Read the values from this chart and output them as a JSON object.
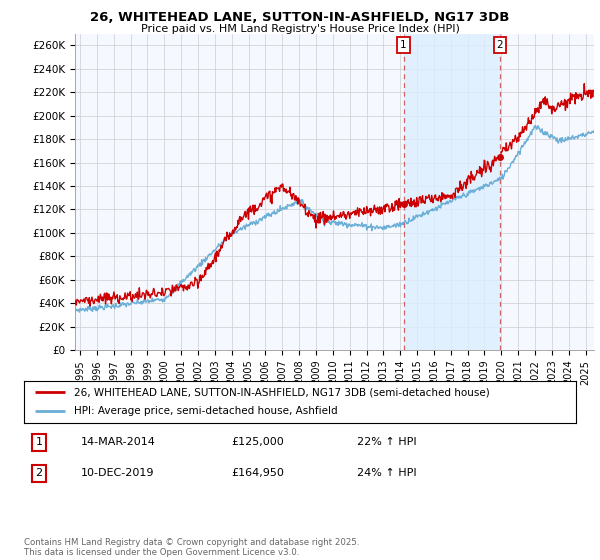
{
  "title": "26, WHITEHEAD LANE, SUTTON-IN-ASHFIELD, NG17 3DB",
  "subtitle": "Price paid vs. HM Land Registry's House Price Index (HPI)",
  "ylim": [
    0,
    270000
  ],
  "yticks": [
    0,
    20000,
    40000,
    60000,
    80000,
    100000,
    120000,
    140000,
    160000,
    180000,
    200000,
    220000,
    240000,
    260000
  ],
  "xlim_start": 1994.7,
  "xlim_end": 2025.5,
  "xticks": [
    1995,
    1996,
    1997,
    1998,
    1999,
    2000,
    2001,
    2002,
    2003,
    2004,
    2005,
    2006,
    2007,
    2008,
    2009,
    2010,
    2011,
    2012,
    2013,
    2014,
    2015,
    2016,
    2017,
    2018,
    2019,
    2020,
    2021,
    2022,
    2023,
    2024,
    2025
  ],
  "red_color": "#cc0000",
  "blue_color": "#6baed6",
  "vline_color": "#cc6666",
  "span_color": "#ddeeff",
  "marker1_x": 2014.2,
  "marker1_y": 125000,
  "marker2_x": 2019.92,
  "marker2_y": 164950,
  "legend_label1": "26, WHITEHEAD LANE, SUTTON-IN-ASHFIELD, NG17 3DB (semi-detached house)",
  "legend_label2": "HPI: Average price, semi-detached house, Ashfield",
  "annot1_label": "1",
  "annot1_date": "14-MAR-2014",
  "annot1_price": "£125,000",
  "annot1_hpi": "22% ↑ HPI",
  "annot2_label": "2",
  "annot2_date": "10-DEC-2019",
  "annot2_price": "£164,950",
  "annot2_hpi": "24% ↑ HPI",
  "footer": "Contains HM Land Registry data © Crown copyright and database right 2025.\nThis data is licensed under the Open Government Licence v3.0.",
  "bg_color": "#ffffff",
  "grid_color": "#cccccc",
  "plot_bg": "#f5f8ff"
}
